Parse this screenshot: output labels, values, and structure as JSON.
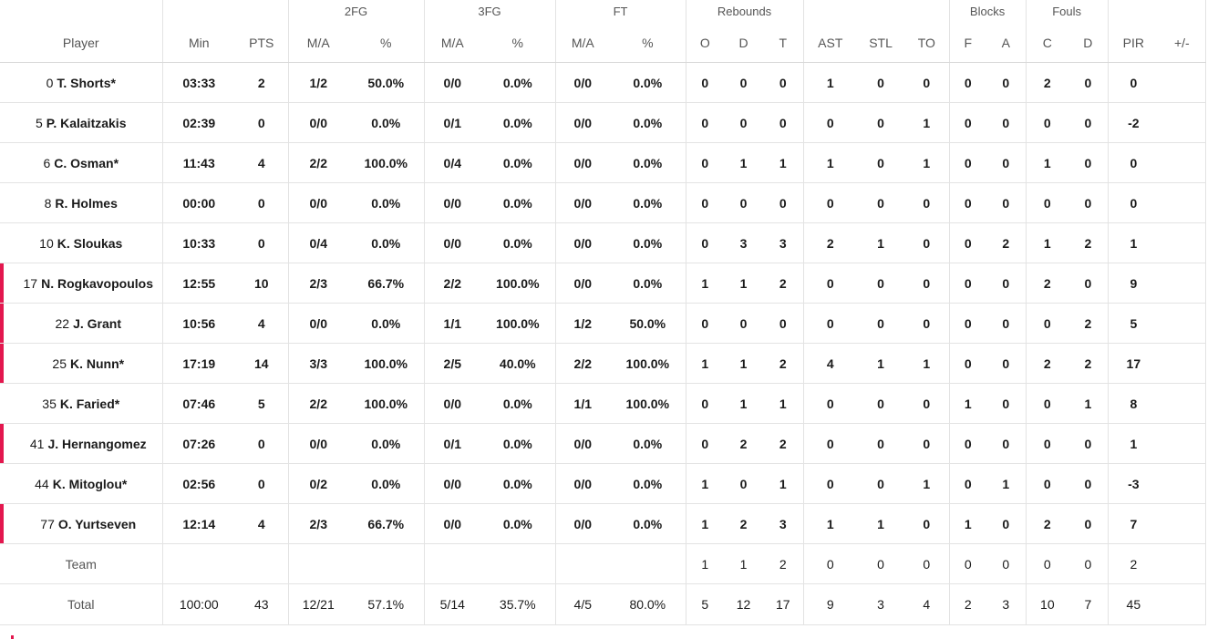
{
  "headers": {
    "groups": {
      "fg2": "2FG",
      "fg3": "3FG",
      "ft": "FT",
      "rebounds": "Rebounds",
      "blocks": "Blocks",
      "fouls": "Fouls"
    },
    "labels": [
      "Player",
      "Min",
      "PTS",
      "M/A",
      "%",
      "M/A",
      "%",
      "M/A",
      "%",
      "O",
      "D",
      "T",
      "AST",
      "STL",
      "TO",
      "F",
      "A",
      "C",
      "D",
      "PIR",
      "+/-"
    ]
  },
  "players": [
    {
      "num": "0",
      "name": "T. Shorts*",
      "sub": false,
      "stats": [
        "03:33",
        "2",
        "1/2",
        "50.0%",
        "0/0",
        "0.0%",
        "0/0",
        "0.0%",
        "0",
        "0",
        "0",
        "1",
        "0",
        "0",
        "0",
        "0",
        "2",
        "0",
        "0",
        ""
      ]
    },
    {
      "num": "5",
      "name": "P. Kalaitzakis",
      "sub": false,
      "stats": [
        "02:39",
        "0",
        "0/0",
        "0.0%",
        "0/1",
        "0.0%",
        "0/0",
        "0.0%",
        "0",
        "0",
        "0",
        "0",
        "0",
        "1",
        "0",
        "0",
        "0",
        "0",
        "-2",
        ""
      ]
    },
    {
      "num": "6",
      "name": "C. Osman*",
      "sub": false,
      "stats": [
        "11:43",
        "4",
        "2/2",
        "100.0%",
        "0/4",
        "0.0%",
        "0/0",
        "0.0%",
        "0",
        "1",
        "1",
        "1",
        "0",
        "1",
        "0",
        "0",
        "1",
        "0",
        "0",
        ""
      ]
    },
    {
      "num": "8",
      "name": "R. Holmes",
      "sub": false,
      "stats": [
        "00:00",
        "0",
        "0/0",
        "0.0%",
        "0/0",
        "0.0%",
        "0/0",
        "0.0%",
        "0",
        "0",
        "0",
        "0",
        "0",
        "0",
        "0",
        "0",
        "0",
        "0",
        "0",
        ""
      ]
    },
    {
      "num": "10",
      "name": "K. Sloukas",
      "sub": false,
      "stats": [
        "10:33",
        "0",
        "0/4",
        "0.0%",
        "0/0",
        "0.0%",
        "0/0",
        "0.0%",
        "0",
        "3",
        "3",
        "2",
        "1",
        "0",
        "0",
        "2",
        "1",
        "2",
        "1",
        ""
      ]
    },
    {
      "num": "17",
      "name": "N. Rogkavopoulos",
      "sub": true,
      "stats": [
        "12:55",
        "10",
        "2/3",
        "66.7%",
        "2/2",
        "100.0%",
        "0/0",
        "0.0%",
        "1",
        "1",
        "2",
        "0",
        "0",
        "0",
        "0",
        "0",
        "2",
        "0",
        "9",
        ""
      ]
    },
    {
      "num": "22",
      "name": "J. Grant",
      "sub": true,
      "stats": [
        "10:56",
        "4",
        "0/0",
        "0.0%",
        "1/1",
        "100.0%",
        "1/2",
        "50.0%",
        "0",
        "0",
        "0",
        "0",
        "0",
        "0",
        "0",
        "0",
        "0",
        "2",
        "5",
        ""
      ]
    },
    {
      "num": "25",
      "name": "K. Nunn*",
      "sub": true,
      "stats": [
        "17:19",
        "14",
        "3/3",
        "100.0%",
        "2/5",
        "40.0%",
        "2/2",
        "100.0%",
        "1",
        "1",
        "2",
        "4",
        "1",
        "1",
        "0",
        "0",
        "2",
        "2",
        "17",
        ""
      ]
    },
    {
      "num": "35",
      "name": "K. Faried*",
      "sub": false,
      "stats": [
        "07:46",
        "5",
        "2/2",
        "100.0%",
        "0/0",
        "0.0%",
        "1/1",
        "100.0%",
        "0",
        "1",
        "1",
        "0",
        "0",
        "0",
        "1",
        "0",
        "0",
        "1",
        "8",
        ""
      ]
    },
    {
      "num": "41",
      "name": "J. Hernangomez",
      "sub": true,
      "stats": [
        "07:26",
        "0",
        "0/0",
        "0.0%",
        "0/1",
        "0.0%",
        "0/0",
        "0.0%",
        "0",
        "2",
        "2",
        "0",
        "0",
        "0",
        "0",
        "0",
        "0",
        "0",
        "1",
        ""
      ]
    },
    {
      "num": "44",
      "name": "K. Mitoglou*",
      "sub": false,
      "stats": [
        "02:56",
        "0",
        "0/2",
        "0.0%",
        "0/0",
        "0.0%",
        "0/0",
        "0.0%",
        "1",
        "0",
        "1",
        "0",
        "0",
        "1",
        "0",
        "1",
        "0",
        "0",
        "-3",
        ""
      ]
    },
    {
      "num": "77",
      "name": "O. Yurtseven",
      "sub": true,
      "stats": [
        "12:14",
        "4",
        "2/3",
        "66.7%",
        "0/0",
        "0.0%",
        "0/0",
        "0.0%",
        "1",
        "2",
        "3",
        "1",
        "1",
        "0",
        "1",
        "0",
        "2",
        "0",
        "7",
        ""
      ]
    }
  ],
  "team": {
    "label": "Team",
    "stats": [
      "",
      "",
      "",
      "",
      "",
      "",
      "",
      "",
      "1",
      "1",
      "2",
      "0",
      "0",
      "0",
      "0",
      "0",
      "0",
      "0",
      "2",
      ""
    ]
  },
  "total": {
    "label": "Total",
    "stats": [
      "100:00",
      "43",
      "12/21",
      "57.1%",
      "5/14",
      "35.7%",
      "4/5",
      "80.0%",
      "5",
      "12",
      "17",
      "9",
      "3",
      "4",
      "2",
      "3",
      "10",
      "7",
      "45",
      ""
    ]
  },
  "colors": {
    "substitute_marker": "#e3174e",
    "row_border": "#e3e3e3",
    "header_text": "#555555"
  }
}
